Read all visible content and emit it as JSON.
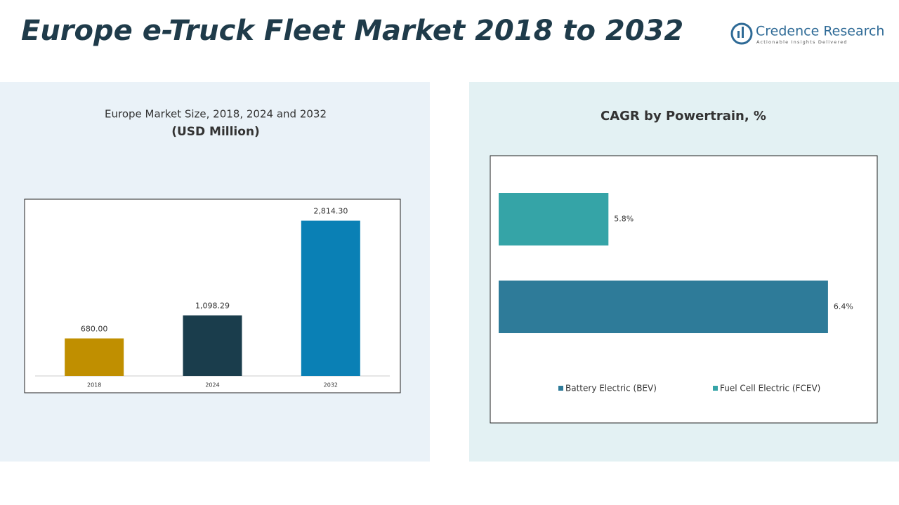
{
  "header": {
    "title": "Europe e-Truck Fleet Market  2018 to 2032",
    "logo": "Credence Research",
    "tagline": "Actionable Insights Delivered"
  },
  "chart_data": [
    {
      "type": "bar",
      "title": "Europe Market Size, 2018, 2024 and 2032",
      "subtitle": "(USD Million)",
      "categories": [
        "2018",
        "2024",
        "2032"
      ],
      "values": [
        680,
        1098.29,
        2814.3
      ],
      "value_labels": [
        "680.00",
        "1,098.29",
        "2,814.30"
      ],
      "colors": [
        "#c08f00",
        "#1a3d4c",
        "#0a80b5"
      ],
      "ylim": [
        0,
        3000
      ]
    },
    {
      "type": "hbar",
      "title": "CAGR by Powertrain, %",
      "xlim": [
        5.5,
        6.5
      ],
      "legend": "bottom",
      "series": [
        {
          "name": "Battery Electric (BEV)",
          "color": "#2e7b99",
          "values": [
            6.4
          ],
          "value_labels": [
            "6.4%"
          ]
        },
        {
          "name": "Fuel Cell Electric (FCEV)",
          "color": "#35a4a7",
          "values": [
            5.8
          ],
          "value_labels": [
            "5.8%"
          ]
        }
      ]
    }
  ]
}
